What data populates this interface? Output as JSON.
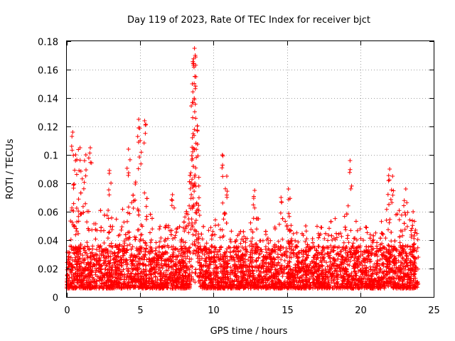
{
  "chart_data": {
    "type": "scatter",
    "title": "Day 119 of 2023, Rate Of TEC Index for receiver bjct",
    "xlabel": "GPS time / hours",
    "ylabel": "ROTI / TECUs",
    "xlim": [
      0,
      25
    ],
    "ylim": [
      0,
      0.18
    ],
    "x_ticks": [
      "0",
      "5",
      "10",
      "15",
      "20",
      "25"
    ],
    "y_ticks": [
      "0",
      "0.02",
      "0.04",
      "0.06",
      "0.08",
      "0.1",
      "0.12",
      "0.14",
      "0.16",
      "0.18"
    ],
    "grid": true,
    "marker": "+",
    "color": "#ff0000",
    "series": [
      {
        "envelope": [
          [
            0.0,
            0.046
          ],
          [
            0.3,
            0.06
          ],
          [
            0.5,
            0.085
          ],
          [
            0.8,
            0.07
          ],
          [
            1.0,
            0.09
          ],
          [
            1.3,
            0.065
          ],
          [
            1.6,
            0.06
          ],
          [
            2.0,
            0.055
          ],
          [
            2.5,
            0.065
          ],
          [
            2.9,
            0.06
          ],
          [
            3.2,
            0.055
          ],
          [
            3.6,
            0.06
          ],
          [
            4.0,
            0.065
          ],
          [
            4.4,
            0.075
          ],
          [
            4.7,
            0.09
          ],
          [
            5.0,
            0.07
          ],
          [
            5.3,
            0.085
          ],
          [
            5.6,
            0.06
          ],
          [
            6.0,
            0.055
          ],
          [
            6.5,
            0.05
          ],
          [
            7.0,
            0.055
          ],
          [
            7.5,
            0.05
          ],
          [
            8.0,
            0.055
          ],
          [
            8.3,
            0.07
          ],
          [
            8.5,
            0.11
          ],
          [
            8.7,
            0.16
          ],
          [
            8.9,
            0.12
          ],
          [
            9.1,
            0.05
          ],
          [
            9.5,
            0.05
          ],
          [
            10.0,
            0.055
          ],
          [
            10.5,
            0.07
          ],
          [
            11.0,
            0.055
          ],
          [
            11.5,
            0.05
          ],
          [
            12.0,
            0.05
          ],
          [
            12.5,
            0.06
          ],
          [
            13.0,
            0.06
          ],
          [
            13.5,
            0.05
          ],
          [
            14.0,
            0.05
          ],
          [
            14.5,
            0.055
          ],
          [
            15.0,
            0.06
          ],
          [
            15.5,
            0.045
          ],
          [
            16.0,
            0.05
          ],
          [
            16.5,
            0.055
          ],
          [
            17.0,
            0.05
          ],
          [
            17.5,
            0.05
          ],
          [
            18.0,
            0.06
          ],
          [
            18.5,
            0.055
          ],
          [
            19.0,
            0.065
          ],
          [
            19.3,
            0.085
          ],
          [
            19.6,
            0.055
          ],
          [
            20.0,
            0.05
          ],
          [
            20.5,
            0.05
          ],
          [
            21.0,
            0.05
          ],
          [
            21.5,
            0.055
          ],
          [
            22.0,
            0.075
          ],
          [
            22.5,
            0.06
          ],
          [
            23.0,
            0.065
          ],
          [
            23.5,
            0.055
          ],
          [
            23.9,
            0.05
          ]
        ],
        "peaks": [
          [
            0.4,
            0.116
          ],
          [
            0.6,
            0.1
          ],
          [
            0.9,
            0.105
          ],
          [
            1.3,
            0.1
          ],
          [
            1.6,
            0.105
          ],
          [
            2.9,
            0.089
          ],
          [
            4.2,
            0.104
          ],
          [
            4.9,
            0.125
          ],
          [
            5.3,
            0.124
          ],
          [
            5.0,
            0.11
          ],
          [
            7.2,
            0.072
          ],
          [
            8.55,
            0.15
          ],
          [
            8.7,
            0.175
          ],
          [
            8.75,
            0.17
          ],
          [
            8.8,
            0.155
          ],
          [
            10.6,
            0.1
          ],
          [
            10.9,
            0.085
          ],
          [
            12.8,
            0.075
          ],
          [
            14.6,
            0.07
          ],
          [
            15.1,
            0.076
          ],
          [
            19.3,
            0.096
          ],
          [
            22.0,
            0.09
          ],
          [
            22.2,
            0.085
          ],
          [
            23.1,
            0.076
          ],
          [
            23.6,
            0.06
          ]
        ]
      }
    ]
  }
}
